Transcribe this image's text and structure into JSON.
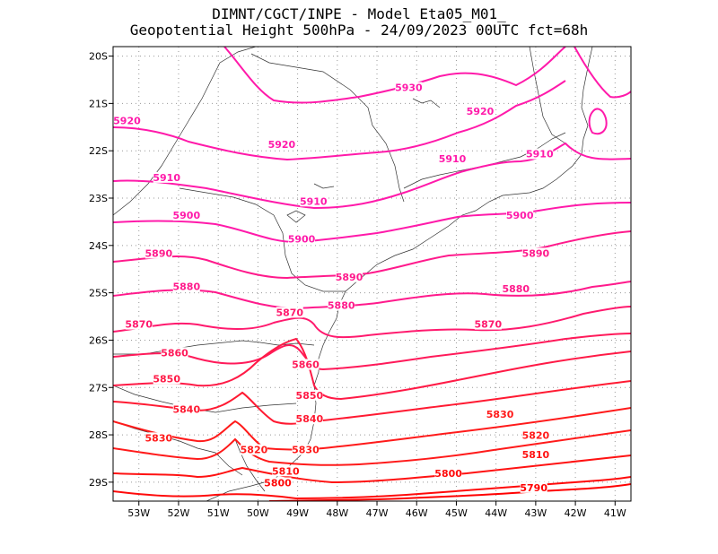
{
  "title_line1": "DIMNT/CGCT/INPE -  Model Eta05_M01_",
  "title_line2": "Geopotential Height 500hPa -  24/09/2023 00UTC fct=68h",
  "map": {
    "lon_range": [
      -53.65,
      -40.6
    ],
    "lat_range": [
      -29.4,
      -19.8
    ],
    "lon_ticks": [
      -53,
      -52,
      -51,
      -50,
      -49,
      -48,
      -47,
      -46,
      -45,
      -44,
      -43,
      -42,
      -41
    ],
    "lat_ticks": [
      -20,
      -21,
      -22,
      -23,
      -24,
      -25,
      -26,
      -27,
      -28,
      -29
    ],
    "lon_tick_labels": [
      "53W",
      "52W",
      "51W",
      "50W",
      "49W",
      "48W",
      "47W",
      "46W",
      "45W",
      "44W",
      "43W",
      "42W",
      "41W"
    ],
    "lat_tick_labels": [
      "20S",
      "21S",
      "22S",
      "23S",
      "24S",
      "25S",
      "26S",
      "27S",
      "28S",
      "29S"
    ],
    "grid": "dotted"
  },
  "contour_labels": [
    {
      "text": "5930",
      "lon": -46.2,
      "lat": -20.7,
      "color": "#ff1aaa"
    },
    {
      "text": "5920",
      "lon": -53.3,
      "lat": -21.4,
      "color": "#ff1aaa"
    },
    {
      "text": "5920",
      "lon": -49.4,
      "lat": -21.9,
      "color": "#ff1aaa"
    },
    {
      "text": "5920",
      "lon": -44.4,
      "lat": -21.2,
      "color": "#ff1aaa"
    },
    {
      "text": "5910",
      "lon": -52.3,
      "lat": -22.6,
      "color": "#ff1aaa"
    },
    {
      "text": "5910",
      "lon": -48.6,
      "lat": -23.1,
      "color": "#ff1aaa"
    },
    {
      "text": "5910",
      "lon": -45.1,
      "lat": -22.2,
      "color": "#ff1aaa"
    },
    {
      "text": "5910",
      "lon": -42.9,
      "lat": -22.1,
      "color": "#ff1aaa"
    },
    {
      "text": "5900",
      "lon": -51.8,
      "lat": -23.4,
      "color": "#ff1aaa"
    },
    {
      "text": "5900",
      "lon": -48.9,
      "lat": -23.9,
      "color": "#ff1aaa"
    },
    {
      "text": "5900",
      "lon": -43.4,
      "lat": -23.4,
      "color": "#ff1aaa"
    },
    {
      "text": "5890",
      "lon": -52.5,
      "lat": -24.2,
      "color": "#ff1a8c"
    },
    {
      "text": "5890",
      "lon": -47.7,
      "lat": -24.7,
      "color": "#ff1a8c"
    },
    {
      "text": "5890",
      "lon": -43.0,
      "lat": -24.2,
      "color": "#ff1a8c"
    },
    {
      "text": "5880",
      "lon": -51.8,
      "lat": -24.9,
      "color": "#ff1a8c"
    },
    {
      "text": "5880",
      "lon": -47.9,
      "lat": -25.3,
      "color": "#ff1a8c"
    },
    {
      "text": "5880",
      "lon": -43.5,
      "lat": -24.95,
      "color": "#ff1a8c"
    },
    {
      "text": "5870",
      "lon": -53.0,
      "lat": -25.7,
      "color": "#ff1a6e"
    },
    {
      "text": "5870",
      "lon": -49.2,
      "lat": -25.45,
      "color": "#ff1a6e"
    },
    {
      "text": "5870",
      "lon": -44.2,
      "lat": -25.7,
      "color": "#ff1a6e"
    },
    {
      "text": "5860",
      "lon": -52.1,
      "lat": -26.3,
      "color": "#ff1a5a"
    },
    {
      "text": "5860",
      "lon": -48.8,
      "lat": -26.55,
      "color": "#ff1a5a"
    },
    {
      "text": "5850",
      "lon": -52.3,
      "lat": -26.85,
      "color": "#ff1a46"
    },
    {
      "text": "5850",
      "lon": -48.7,
      "lat": -27.2,
      "color": "#ff1a46"
    },
    {
      "text": "5840",
      "lon": -51.8,
      "lat": -27.5,
      "color": "#ff1a32"
    },
    {
      "text": "5840",
      "lon": -48.7,
      "lat": -27.7,
      "color": "#ff1a32"
    },
    {
      "text": "5830",
      "lon": -52.5,
      "lat": -28.1,
      "color": "#ff1a1a"
    },
    {
      "text": "5830",
      "lon": -48.8,
      "lat": -28.35,
      "color": "#ff1a1a"
    },
    {
      "text": "5830",
      "lon": -43.9,
      "lat": -27.6,
      "color": "#ff1a1a"
    },
    {
      "text": "5820",
      "lon": -50.1,
      "lat": -28.35,
      "color": "#ff1a1a"
    },
    {
      "text": "5820",
      "lon": -43.0,
      "lat": -28.05,
      "color": "#ff1a1a"
    },
    {
      "text": "5810",
      "lon": -49.3,
      "lat": -28.8,
      "color": "#ff1212"
    },
    {
      "text": "5810",
      "lon": -43.0,
      "lat": -28.45,
      "color": "#ff1212"
    },
    {
      "text": "5800",
      "lon": -49.5,
      "lat": -29.05,
      "color": "#ff0a0a"
    },
    {
      "text": "5800",
      "lon": -45.2,
      "lat": -28.85,
      "color": "#ff0a0a"
    },
    {
      "text": "5790",
      "lon": -43.05,
      "lat": -29.15,
      "color": "#ff0000"
    }
  ]
}
